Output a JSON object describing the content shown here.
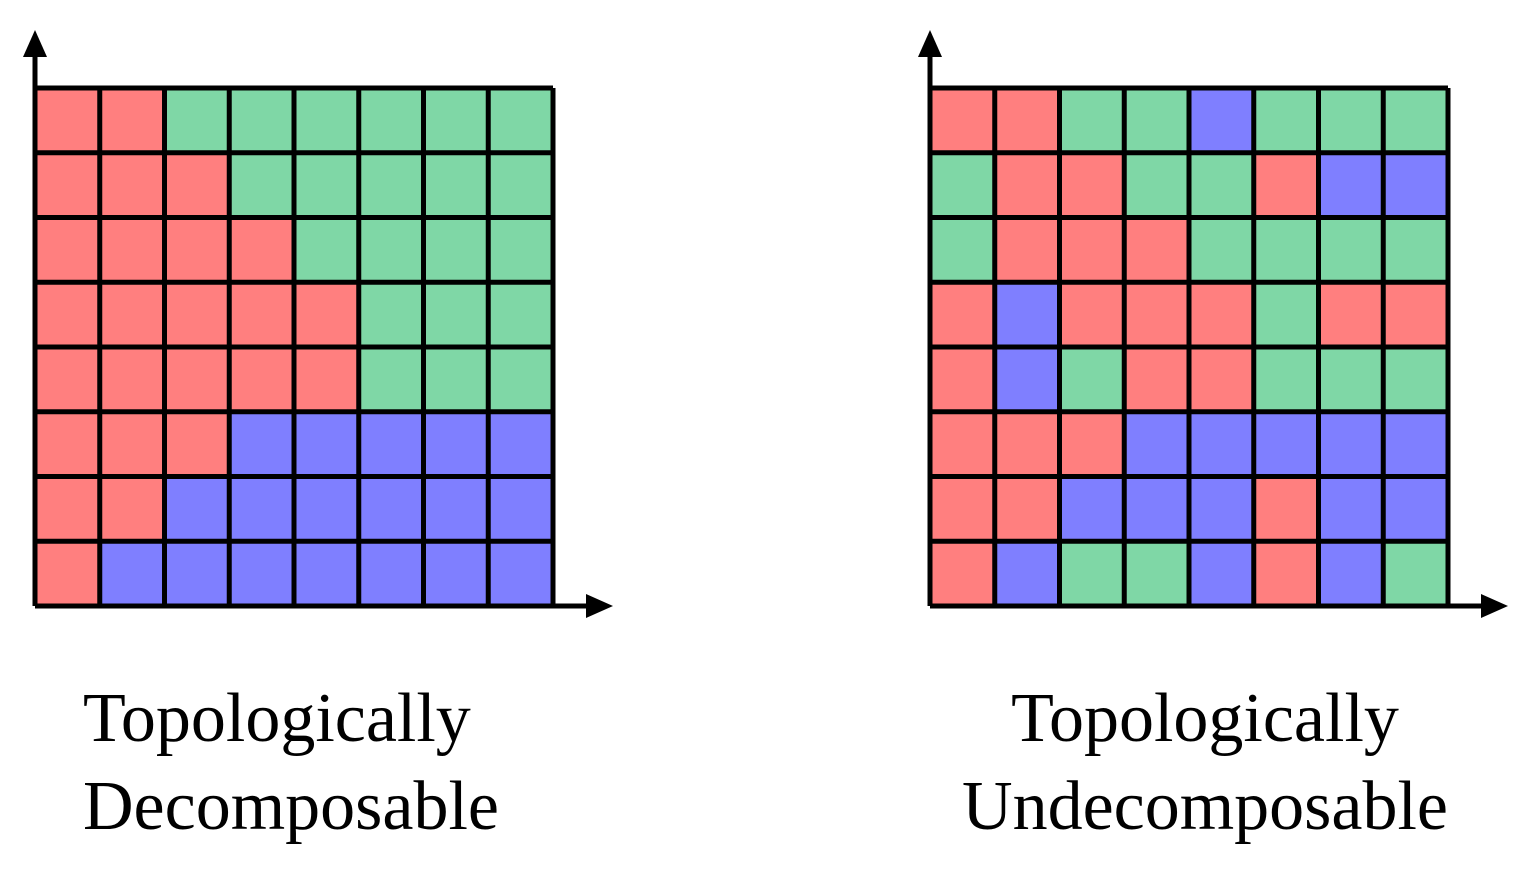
{
  "colors": {
    "red": "#ff7f7f",
    "green": "#7fd7a6",
    "blue": "#7f7fff",
    "grid": "#000000",
    "background": "#ffffff"
  },
  "panels": [
    {
      "id": "left",
      "caption": [
        "Topologically",
        "Decomposable"
      ],
      "grid": [
        [
          "red",
          "red",
          "green",
          "green",
          "green",
          "green",
          "green",
          "green"
        ],
        [
          "red",
          "red",
          "red",
          "green",
          "green",
          "green",
          "green",
          "green"
        ],
        [
          "red",
          "red",
          "red",
          "red",
          "green",
          "green",
          "green",
          "green"
        ],
        [
          "red",
          "red",
          "red",
          "red",
          "red",
          "green",
          "green",
          "green"
        ],
        [
          "red",
          "red",
          "red",
          "red",
          "red",
          "green",
          "green",
          "green"
        ],
        [
          "red",
          "red",
          "red",
          "blue",
          "blue",
          "blue",
          "blue",
          "blue"
        ],
        [
          "red",
          "red",
          "blue",
          "blue",
          "blue",
          "blue",
          "blue",
          "blue"
        ],
        [
          "red",
          "blue",
          "blue",
          "blue",
          "blue",
          "blue",
          "blue",
          "blue"
        ]
      ]
    },
    {
      "id": "right",
      "caption": [
        "Topologically",
        "Undecomposable"
      ],
      "grid": [
        [
          "red",
          "red",
          "green",
          "green",
          "blue",
          "green",
          "green",
          "green"
        ],
        [
          "green",
          "red",
          "red",
          "green",
          "green",
          "red",
          "blue",
          "blue"
        ],
        [
          "green",
          "red",
          "red",
          "red",
          "green",
          "green",
          "green",
          "green"
        ],
        [
          "red",
          "blue",
          "red",
          "red",
          "red",
          "green",
          "red",
          "red"
        ],
        [
          "red",
          "blue",
          "green",
          "red",
          "red",
          "green",
          "green",
          "green"
        ],
        [
          "red",
          "red",
          "red",
          "blue",
          "blue",
          "blue",
          "blue",
          "blue"
        ],
        [
          "red",
          "red",
          "blue",
          "blue",
          "blue",
          "red",
          "blue",
          "blue"
        ],
        [
          "red",
          "blue",
          "green",
          "green",
          "blue",
          "red",
          "blue",
          "green"
        ]
      ]
    }
  ]
}
